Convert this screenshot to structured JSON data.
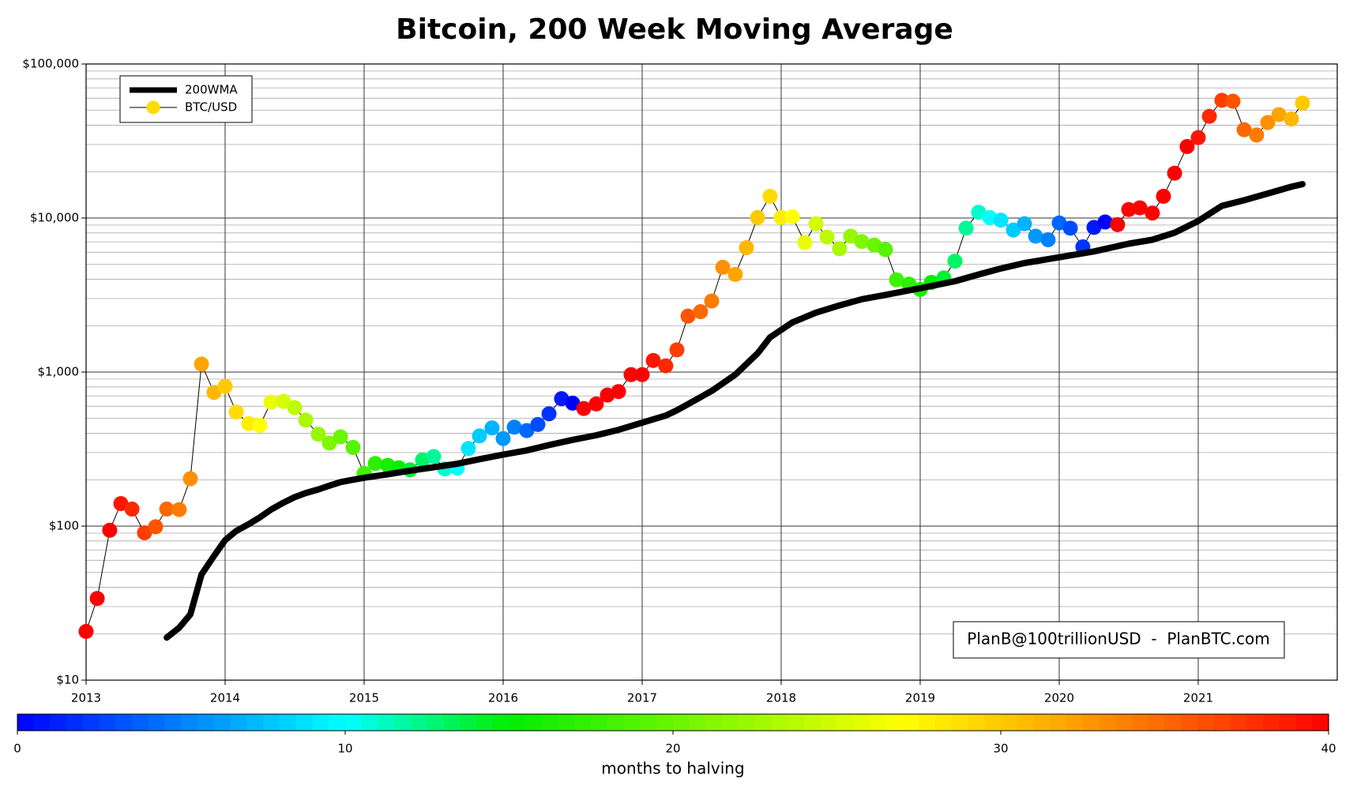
{
  "chart_data": {
    "type": "line",
    "title": "Bitcoin, 200 Week Moving Average",
    "annotation": "PlanB@100trillionUSD  -  PlanBTC.com",
    "xlim": [
      2013,
      2022
    ],
    "xticks": [
      2013,
      2014,
      2015,
      2016,
      2017,
      2018,
      2019,
      2020,
      2021
    ],
    "ylim": [
      10,
      100000
    ],
    "yscale": "log",
    "yticks": [
      {
        "value": 10,
        "label": "$10"
      },
      {
        "value": 100,
        "label": "$100"
      },
      {
        "value": 1000,
        "label": "$1,000"
      },
      {
        "value": 10000,
        "label": "$10,000"
      },
      {
        "value": 100000,
        "label": "$100,000"
      }
    ],
    "grid": true,
    "legend": "upper left",
    "colorbar": {
      "label": "months to halving",
      "lim": [
        0,
        40
      ],
      "ticks": [
        0,
        10,
        20,
        30,
        40
      ],
      "colormap": [
        [
          0,
          "#0000ff"
        ],
        [
          10,
          "#00ffff"
        ],
        [
          15,
          "#00ee00"
        ],
        [
          27,
          "#ffff00"
        ],
        [
          32,
          "#ffa500"
        ],
        [
          40,
          "#ff0000"
        ]
      ]
    },
    "series": [
      {
        "name": "200WMA",
        "color": "#000000",
        "x": [
          2013.58,
          2013.67,
          2013.75,
          2013.83,
          2013.92,
          2014,
          2014.08,
          2014.17,
          2014.25,
          2014.33,
          2014.42,
          2014.5,
          2014.58,
          2014.67,
          2014.75,
          2014.83,
          2014.92,
          2015,
          2015.17,
          2015.33,
          2015.5,
          2015.67,
          2015.83,
          2016,
          2016.17,
          2016.33,
          2016.5,
          2016.67,
          2016.83,
          2017,
          2017.17,
          2017.25,
          2017.33,
          2017.5,
          2017.67,
          2017.83,
          2017.92,
          2018.08,
          2018.25,
          2018.42,
          2018.58,
          2018.75,
          2019,
          2019.25,
          2019.42,
          2019.58,
          2019.75,
          2020,
          2020.25,
          2020.5,
          2020.67,
          2020.83,
          2021,
          2021.17,
          2021.33,
          2021.5,
          2021.67,
          2021.75
        ],
        "values": [
          18.9,
          21.9,
          26.7,
          48.5,
          64,
          81,
          93,
          103,
          114,
          128,
          142,
          154,
          164,
          173,
          183,
          193,
          200,
          206,
          217,
          229,
          241,
          254,
          272,
          291,
          310,
          336,
          363,
          389,
          422,
          469,
          522,
          565,
          619,
          754,
          962,
          1322,
          1680,
          2100,
          2430,
          2710,
          2970,
          3170,
          3500,
          3890,
          4300,
          4700,
          5100,
          5560,
          6070,
          6810,
          7230,
          8030,
          9560,
          11990,
          13040,
          14420,
          15960,
          16600
        ]
      },
      {
        "name": "BTC/USD",
        "color": "#000000",
        "marker_color": "#ffdd00",
        "x": [
          2013,
          2013.08,
          2013.17,
          2013.25,
          2013.33,
          2013.42,
          2013.5,
          2013.58,
          2013.67,
          2013.75,
          2013.83,
          2013.92,
          2014,
          2014.08,
          2014.17,
          2014.25,
          2014.33,
          2014.42,
          2014.5,
          2014.58,
          2014.67,
          2014.75,
          2014.83,
          2014.92,
          2015,
          2015.08,
          2015.17,
          2015.25,
          2015.33,
          2015.42,
          2015.5,
          2015.58,
          2015.67,
          2015.75,
          2015.83,
          2015.92,
          2016,
          2016.08,
          2016.17,
          2016.25,
          2016.33,
          2016.42,
          2016.5,
          2016.58,
          2016.67,
          2016.75,
          2016.83,
          2016.92,
          2017,
          2017.08,
          2017.17,
          2017.25,
          2017.33,
          2017.42,
          2017.5,
          2017.58,
          2017.67,
          2017.75,
          2017.83,
          2017.92,
          2018,
          2018.08,
          2018.17,
          2018.25,
          2018.33,
          2018.42,
          2018.5,
          2018.58,
          2018.67,
          2018.75,
          2018.83,
          2018.92,
          2019,
          2019.08,
          2019.17,
          2019.25,
          2019.33,
          2019.42,
          2019.5,
          2019.58,
          2019.67,
          2019.75,
          2019.83,
          2019.92,
          2020,
          2020.08,
          2020.17,
          2020.25,
          2020.33,
          2020.42,
          2020.5,
          2020.58,
          2020.67,
          2020.75,
          2020.83,
          2020.92,
          2021,
          2021.08,
          2021.17,
          2021.25,
          2021.33,
          2021.42,
          2021.5,
          2021.58,
          2021.67,
          2021.75
        ],
        "values": [
          20.7,
          33.9,
          94,
          140,
          129,
          90.5,
          99,
          129,
          128,
          203,
          1127,
          737,
          808,
          550,
          463,
          451,
          637,
          645,
          588,
          488,
          395,
          346,
          380,
          324,
          220,
          255,
          248,
          239,
          232,
          269,
          283,
          235,
          238,
          319,
          385,
          434,
          370,
          439,
          417,
          457,
          536,
          672,
          628,
          580,
          621,
          709,
          747,
          962,
          962,
          1189,
          1097,
          1394,
          2307,
          2466,
          2892,
          4786,
          4305,
          6412,
          10070,
          13840,
          10070,
          10200,
          6935,
          9180,
          7520,
          6320,
          7620,
          7035,
          6670,
          6240,
          3970,
          3720,
          3436,
          3820,
          4085,
          5250,
          8590,
          10890,
          10070,
          9680,
          8360,
          9180,
          7620,
          7230,
          9290,
          8590,
          6500,
          8690,
          9420,
          9060,
          11350,
          11640,
          10770,
          13840,
          19540,
          29110,
          33270,
          45710,
          58070,
          57290,
          37450,
          34580,
          41690,
          46930,
          43940,
          55700
        ],
        "months_to_halving": [
          42,
          41,
          40,
          39,
          38,
          37,
          36,
          35,
          34,
          33,
          32,
          31,
          30,
          29,
          28,
          27,
          26,
          25,
          24,
          23,
          22,
          21,
          20,
          19,
          18,
          17,
          16,
          15,
          14,
          13,
          12,
          11,
          10,
          9,
          8,
          7,
          6,
          5,
          4,
          3,
          2,
          1,
          0,
          45,
          44,
          43,
          42,
          41,
          40,
          39,
          38,
          37,
          36,
          35,
          34,
          33,
          32,
          31,
          30,
          29,
          28,
          27,
          26,
          25,
          24,
          23,
          22,
          21,
          20,
          19,
          18,
          17,
          16,
          15,
          14,
          13,
          12,
          11,
          10,
          9,
          8,
          7,
          6,
          5,
          4,
          3,
          2,
          1,
          0,
          46,
          45,
          44,
          43,
          42,
          41,
          40,
          39,
          38,
          37,
          36,
          35,
          34,
          33,
          32,
          31,
          30
        ]
      }
    ]
  }
}
